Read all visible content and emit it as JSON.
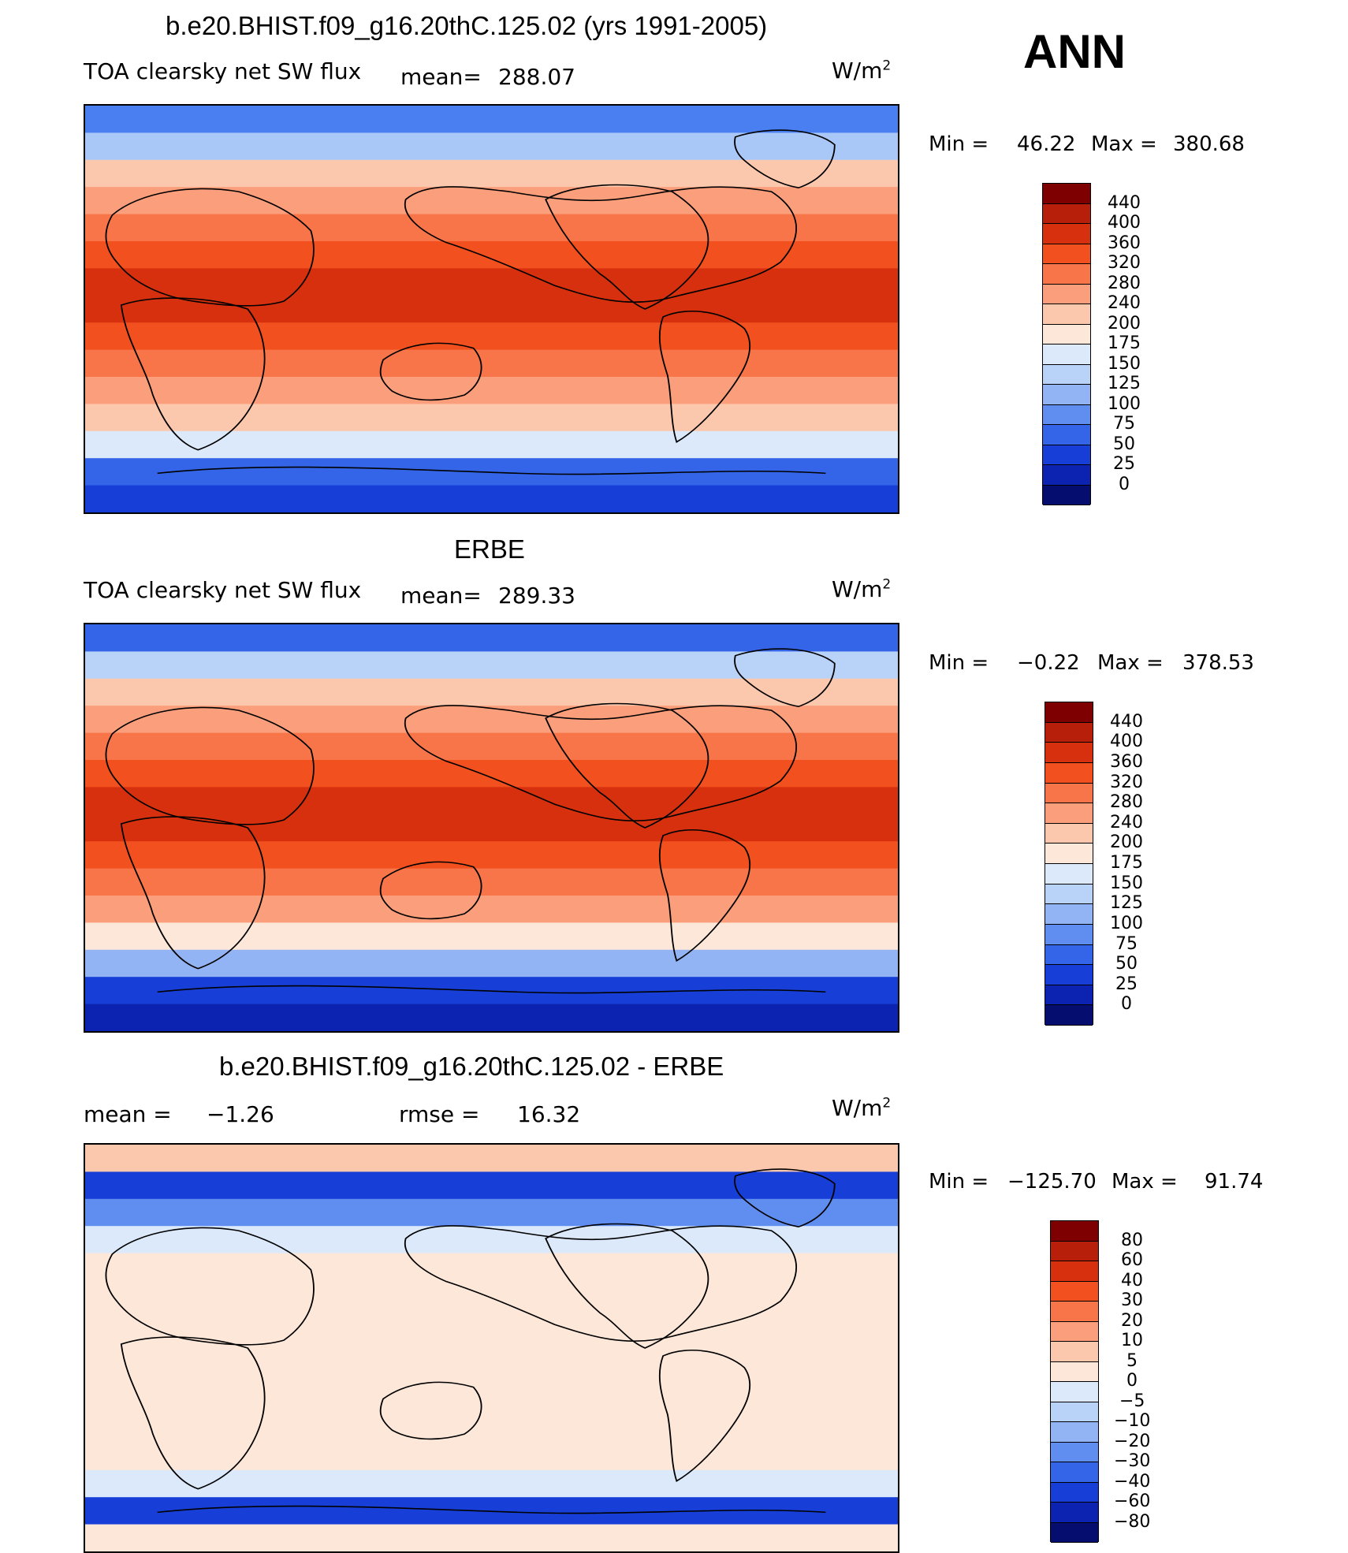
{
  "header": {
    "season": "ANN"
  },
  "panels": [
    {
      "id": "model",
      "title": "b.e20.BHIST.f09_g16.20thC.125.02 (yrs 1991-2005)",
      "variable": "TOA clearsky net SW flux",
      "stat1_label": "mean=",
      "stat1_value": "288.07",
      "unit": "W/m",
      "unit_exp": "2",
      "min_label": "Min =",
      "min_value": "46.22",
      "max_label": "Max =",
      "max_value": "380.68",
      "colorbar": {
        "labels": [
          "440",
          "400",
          "360",
          "320",
          "280",
          "240",
          "200",
          "175",
          "150",
          "125",
          "100",
          "75",
          "50",
          "25",
          "0"
        ],
        "colors": [
          "#7f0000",
          "#b71f0a",
          "#d7300f",
          "#f2501e",
          "#f8754a",
          "#fa9e7b",
          "#fcc8ad",
          "#fde7d8",
          "#dbe9fb",
          "#b9d2f8",
          "#92b4f4",
          "#5f8ef0",
          "#3465e8",
          "#173fd7",
          "#0b23b0",
          "#050d6e"
        ]
      },
      "zonal_colors": [
        "#4a7ff2",
        "#a9c8f8",
        "#fcc8ad",
        "#fa9e7b",
        "#f8754a",
        "#f2501e",
        "#d7300f",
        "#d7300f",
        "#f2501e",
        "#f8754a",
        "#fa9e7b",
        "#fcc8ad",
        "#dbe9fb",
        "#3465e8",
        "#173fd7"
      ]
    },
    {
      "id": "obs",
      "title": "ERBE",
      "variable": "TOA clearsky net SW flux",
      "stat1_label": "mean=",
      "stat1_value": "289.33",
      "unit": "W/m",
      "unit_exp": "2",
      "min_label": "Min =",
      "min_value": "−0.22",
      "max_label": "Max =",
      "max_value": "378.53",
      "colorbar": {
        "labels": [
          "440",
          "400",
          "360",
          "320",
          "280",
          "240",
          "200",
          "175",
          "150",
          "125",
          "100",
          "75",
          "50",
          "25",
          "0"
        ],
        "colors": [
          "#7f0000",
          "#b71f0a",
          "#d7300f",
          "#f2501e",
          "#f8754a",
          "#fa9e7b",
          "#fcc8ad",
          "#fde7d8",
          "#dbe9fb",
          "#b9d2f8",
          "#92b4f4",
          "#5f8ef0",
          "#3465e8",
          "#173fd7",
          "#0b23b0",
          "#050d6e"
        ]
      },
      "zonal_colors": [
        "#3465e8",
        "#b9d2f8",
        "#fcc8ad",
        "#fa9e7b",
        "#f8754a",
        "#f2501e",
        "#d7300f",
        "#d7300f",
        "#f2501e",
        "#f8754a",
        "#fa9e7b",
        "#fde7d8",
        "#92b4f4",
        "#173fd7",
        "#0b23b0"
      ]
    },
    {
      "id": "diff",
      "title": "b.e20.BHIST.f09_g16.20thC.125.02 - ERBE",
      "variable": "",
      "stat1_label": "mean =",
      "stat1_value": "−1.26",
      "stat2_label": "rmse =",
      "stat2_value": "16.32",
      "unit": "W/m",
      "unit_exp": "2",
      "min_label": "Min =",
      "min_value": "−125.70",
      "max_label": "Max =",
      "max_value": "91.74",
      "colorbar": {
        "labels": [
          "80",
          "60",
          "40",
          "30",
          "20",
          "10",
          "5",
          "0",
          "−5",
          "−10",
          "−20",
          "−30",
          "−40",
          "−60",
          "−80"
        ],
        "colors": [
          "#7f0000",
          "#b71f0a",
          "#d7300f",
          "#f2501e",
          "#f8754a",
          "#fa9e7b",
          "#fcc8ad",
          "#fde7d8",
          "#dbe9fb",
          "#b9d2f8",
          "#92b4f4",
          "#5f8ef0",
          "#3465e8",
          "#173fd7",
          "#0b23b0",
          "#050d6e"
        ]
      },
      "zonal_colors": [
        "#fcc8ad",
        "#173fd7",
        "#5f8ef0",
        "#dbe9fb",
        "#fde7d8",
        "#fde7d8",
        "#fde7d8",
        "#fde7d8",
        "#fde7d8",
        "#fde7d8",
        "#fde7d8",
        "#fde7d8",
        "#dbe9fb",
        "#173fd7",
        "#fde7d8"
      ]
    }
  ]
}
